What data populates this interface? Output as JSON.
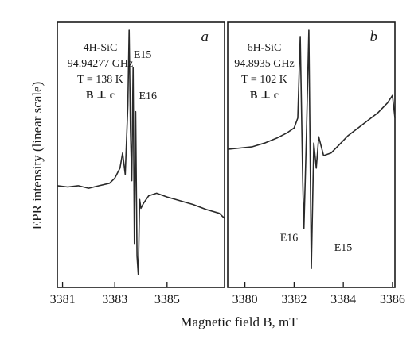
{
  "figure": {
    "ylabel": "EPR intensity (linear scale)",
    "xlabel": "Magnetic field B, mT"
  },
  "chart_data": [
    {
      "type": "line",
      "panel_label": "a",
      "annotation": {
        "material": "4H-SiC",
        "frequency": "94.94277 GHz",
        "temperature": "T = 138 K",
        "orientation": "B ⊥ c"
      },
      "xlim": [
        3380.8,
        3387.2
      ],
      "ylim": [
        -1.0,
        1.0
      ],
      "xticks": [
        3381,
        3383,
        3385
      ],
      "xtick_labels": [
        "3381",
        "3383",
        "3385"
      ],
      "peak_labels": [
        {
          "text": "E15",
          "x": 3383.6,
          "y": 0.78
        },
        {
          "text": "E16",
          "x": 3383.8,
          "y": 0.45
        }
      ],
      "series": [
        {
          "x": [
            3380.8,
            3381.2,
            3381.6,
            3382.0,
            3382.4,
            3382.8,
            3383.0,
            3383.2,
            3383.3,
            3383.4,
            3383.5,
            3383.55,
            3383.6,
            3383.65,
            3383.7,
            3383.75,
            3383.8,
            3383.85,
            3383.9,
            3383.95,
            3384.0,
            3384.1,
            3384.3,
            3384.6,
            3385.0,
            3385.5,
            3386.0,
            3386.5,
            3387.0,
            3387.2
          ],
          "y": [
            -0.24,
            -0.25,
            -0.24,
            -0.26,
            -0.24,
            -0.22,
            -0.18,
            -0.1,
            0.02,
            -0.15,
            0.4,
            1.0,
            0.2,
            -0.2,
            0.7,
            -0.7,
            0.35,
            -0.8,
            -0.95,
            -0.35,
            -0.42,
            -0.38,
            -0.32,
            -0.3,
            -0.33,
            -0.36,
            -0.39,
            -0.43,
            -0.46,
            -0.5
          ]
        }
      ]
    },
    {
      "type": "line",
      "panel_label": "b",
      "annotation": {
        "material": "6H-SiC",
        "frequency": "94.8935 GHz",
        "temperature": "T = 102 K",
        "orientation": "B ⊥ c"
      },
      "xlim": [
        3379.3,
        3386.1
      ],
      "ylim": [
        -1.0,
        1.0
      ],
      "xticks": [
        3380,
        3382,
        3384,
        3386
      ],
      "xtick_labels": [
        "3380",
        "3382",
        "3384",
        "3386"
      ],
      "peak_labels": [
        {
          "text": "E16",
          "x": 3381.3,
          "y": -0.68
        },
        {
          "text": "E15",
          "x": 3383.5,
          "y": -0.76
        }
      ],
      "series": [
        {
          "x": [
            3379.3,
            3379.8,
            3380.3,
            3380.8,
            3381.3,
            3381.7,
            3382.0,
            3382.15,
            3382.25,
            3382.35,
            3382.4,
            3382.5,
            3382.6,
            3382.7,
            3382.8,
            3382.9,
            3383.0,
            3383.2,
            3383.5,
            3383.8,
            3384.2,
            3384.6,
            3385.0,
            3385.4,
            3385.8,
            3386.0,
            3386.1
          ],
          "y": [
            0.05,
            0.06,
            0.07,
            0.1,
            0.14,
            0.18,
            0.22,
            0.3,
            0.95,
            -0.2,
            -0.58,
            0.15,
            1.0,
            -0.9,
            0.1,
            -0.1,
            0.15,
            0.0,
            0.02,
            0.08,
            0.16,
            0.22,
            0.28,
            0.34,
            0.42,
            0.48,
            0.3
          ]
        }
      ]
    }
  ]
}
